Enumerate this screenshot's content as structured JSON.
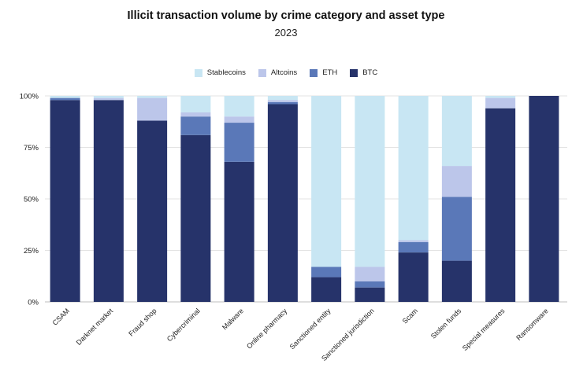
{
  "chart_data": {
    "type": "bar",
    "stacked": true,
    "title": "Illicit transaction volume by crime category and asset type",
    "subtitle": "2023",
    "xlabel": "",
    "ylabel": "",
    "ylim": [
      0,
      100
    ],
    "yticks": [
      {
        "value": 0,
        "label": "0%"
      },
      {
        "value": 25,
        "label": "25%"
      },
      {
        "value": 50,
        "label": "50%"
      },
      {
        "value": 75,
        "label": "75%"
      },
      {
        "value": 100,
        "label": "100%"
      }
    ],
    "legend_position": "top-center",
    "legend_order": [
      "Stablecoins",
      "Altcoins",
      "ETH",
      "BTC"
    ],
    "categories": [
      "CSAM",
      "Darknet market",
      "Fraud shop",
      "Cybercriminal",
      "Malware",
      "Online pharmacy",
      "Sanctioned entity",
      "Sanctioned jurisdiction",
      "Scam",
      "Stolen funds",
      "Special measures",
      "Ransomware"
    ],
    "series": [
      {
        "name": "BTC",
        "color": "#26336a",
        "values": [
          98,
          98,
          88,
          81,
          68,
          96,
          12,
          7,
          24,
          20,
          94,
          100
        ]
      },
      {
        "name": "ETH",
        "color": "#5a78b8",
        "values": [
          1,
          0,
          0,
          9,
          19,
          1,
          5,
          3,
          5,
          31,
          0,
          0
        ]
      },
      {
        "name": "Altcoins",
        "color": "#bcc6ea",
        "values": [
          0,
          1,
          11,
          2,
          3,
          1,
          0,
          7,
          1,
          15,
          5,
          0
        ]
      },
      {
        "name": "Stablecoins",
        "color": "#c8e6f3",
        "values": [
          1,
          1,
          1,
          8,
          10,
          2,
          83,
          83,
          70,
          34,
          1,
          0
        ]
      }
    ]
  }
}
